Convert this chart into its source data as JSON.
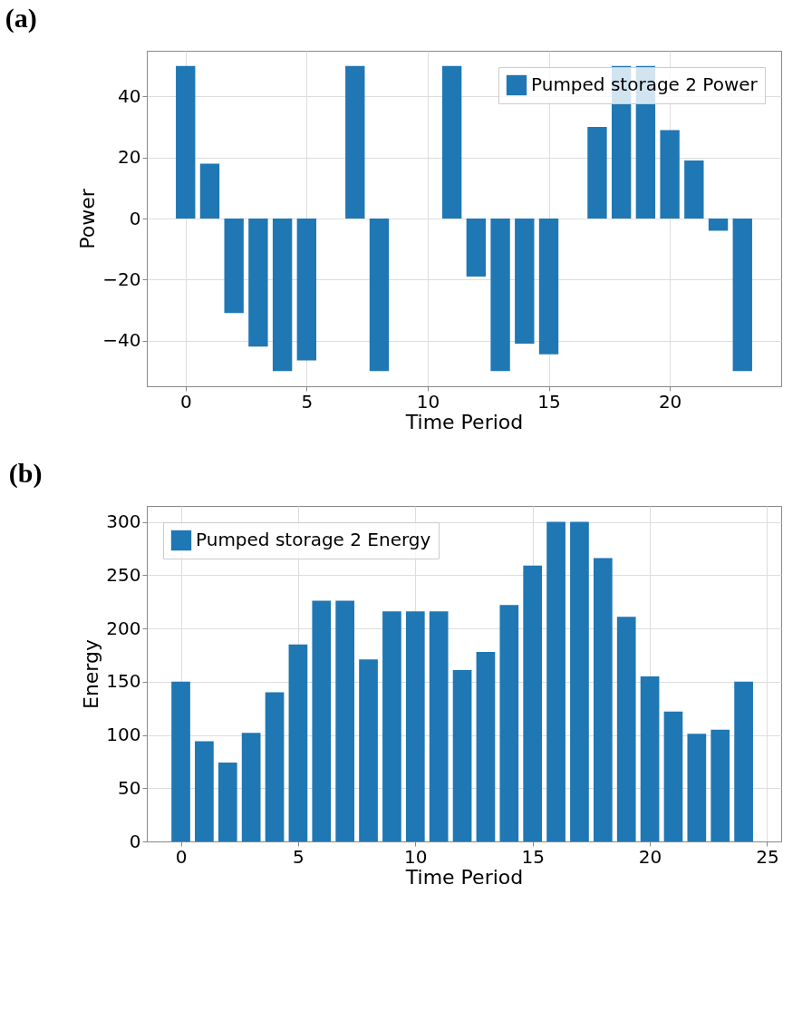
{
  "chart_data": [
    {
      "type": "bar",
      "title": "(a)",
      "xlabel": "Time Period",
      "ylabel": "Power",
      "x": [
        0,
        1,
        2,
        3,
        4,
        5,
        6,
        7,
        8,
        9,
        10,
        11,
        12,
        13,
        14,
        15,
        16,
        17,
        18,
        19,
        20,
        21,
        22,
        23
      ],
      "series": [
        {
          "name": "Pumped storage 2 Power",
          "color": "#1f77b4",
          "values": [
            50,
            18,
            -31,
            -42,
            -50,
            -46.5,
            0,
            50,
            -50,
            0,
            0,
            50,
            -19,
            -50,
            -41,
            -44.5,
            0,
            30,
            50,
            50,
            29,
            19,
            -4,
            -50
          ]
        }
      ],
      "xlim": [
        -1.6,
        24.6
      ],
      "xticks": [
        0,
        5,
        10,
        15,
        20
      ],
      "ylim": [
        -55,
        55
      ],
      "yticks": [
        -40,
        -20,
        0,
        20,
        40
      ],
      "grid": true,
      "legend": "top right"
    },
    {
      "type": "bar",
      "title": "(b)",
      "xlabel": "Time Period",
      "ylabel": "Energy",
      "x": [
        0,
        1,
        2,
        3,
        4,
        5,
        6,
        7,
        8,
        9,
        10,
        11,
        12,
        13,
        14,
        15,
        16,
        17,
        18,
        19,
        20,
        21,
        22,
        23,
        24
      ],
      "series": [
        {
          "name": "Pumped storage 2 Energy",
          "color": "#1f77b4",
          "values": [
            150,
            94,
            74,
            102,
            140,
            185,
            226,
            226,
            171,
            216,
            216,
            216,
            161,
            178,
            222,
            259,
            300,
            300,
            266,
            211,
            155,
            122,
            101,
            105,
            150
          ]
        }
      ],
      "xlim": [
        -1.45,
        25.6
      ],
      "xticks": [
        0,
        5,
        10,
        15,
        20,
        25
      ],
      "ylim": [
        0,
        315
      ],
      "yticks": [
        0,
        50,
        100,
        150,
        200,
        250,
        300
      ],
      "grid": true,
      "legend": "top left"
    }
  ]
}
